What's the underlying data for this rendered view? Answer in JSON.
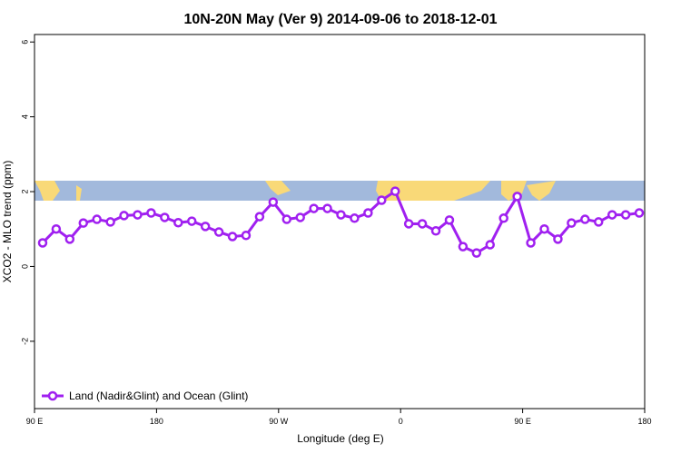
{
  "chart_data": {
    "type": "line",
    "title": "10N-20N May (Ver 9)   2014-09-06 to 2018-12-01",
    "x_label": "Longitude (deg E)",
    "y_label": "XCO2 - MLO trend (ppm)",
    "xlim": [
      90,
      540
    ],
    "xticks": [
      {
        "value": 90,
        "label": "90 E"
      },
      180,
      {
        "value": 270,
        "label": "90 W"
      },
      {
        "value": 360,
        "label": "0"
      },
      {
        "value": 450,
        "label": "90 E"
      },
      {
        "value": 540,
        "label": "180"
      }
    ],
    "ylim": [
      -3.8,
      6.2
    ],
    "yticks": [
      -2,
      0,
      2,
      4,
      6
    ],
    "legend": "bottom-left",
    "x": [
      96,
      106,
      116,
      126,
      136,
      146,
      156,
      166,
      176,
      186,
      196,
      206,
      216,
      226,
      236,
      246,
      256,
      266,
      276,
      286,
      296,
      306,
      316,
      326,
      336,
      346,
      356,
      366,
      376,
      386,
      396,
      406,
      416,
      426,
      436,
      446,
      456,
      466,
      476,
      486,
      496,
      506,
      516,
      526,
      536
    ],
    "series": [
      {
        "name": "Land (Nadir&Glint) and Ocean (Glint)",
        "color": "#a020f0",
        "values": [
          0.63,
          1.0,
          0.73,
          1.16,
          1.26,
          1.19,
          1.36,
          1.38,
          1.43,
          1.31,
          1.17,
          1.21,
          1.07,
          0.92,
          0.8,
          0.83,
          1.33,
          1.72,
          1.26,
          1.31,
          1.55,
          1.55,
          1.38,
          1.29,
          1.43,
          1.77,
          2.01,
          1.14,
          1.14,
          0.95,
          1.24,
          0.53,
          0.36,
          0.58,
          1.29,
          1.87,
          0.63,
          1.0,
          0.73,
          1.16,
          1.26,
          1.19,
          1.38,
          1.38,
          1.43
        ]
      }
    ]
  }
}
